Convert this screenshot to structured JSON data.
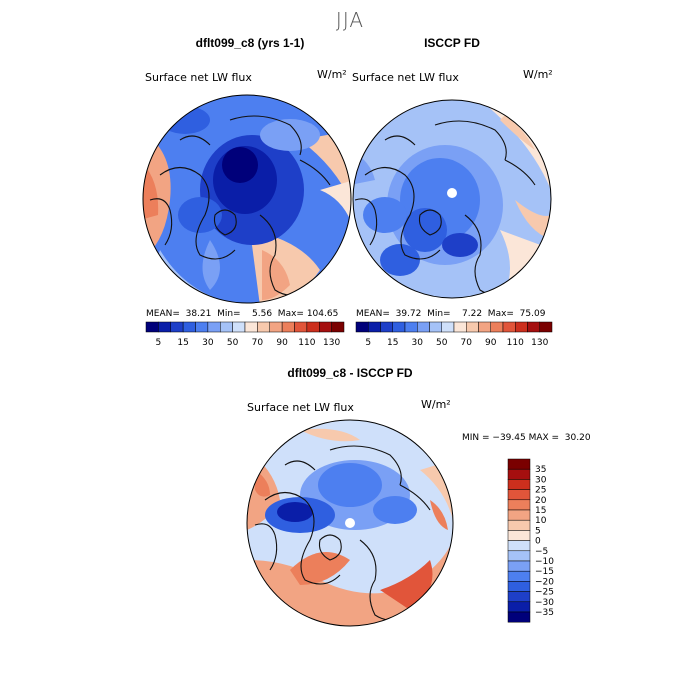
{
  "season_title": "JJA",
  "panels": [
    {
      "title": "dflt099_c8 (yrs 1-1)",
      "field": "Surface net LW flux",
      "units": "W/m²",
      "stats": "MEAN=  38.21  Min=    5.56  Max= 104.65"
    },
    {
      "title": "ISCCP FD",
      "field": "Surface net LW flux",
      "units": "W/m²",
      "stats": "MEAN=  39.72  Min=    7.22  Max=  75.09"
    },
    {
      "title": "dflt099_c8 - ISCCP FD",
      "field": "Surface net LW flux",
      "units": "W/m²",
      "stats": "MIN = −39.45 MAX =  30.20"
    }
  ],
  "chart_data": [
    {
      "type": "heatmap",
      "projection": "polar-stereographic (north)",
      "title": "dflt099_c8 (yrs 1-1)",
      "field": "Surface net LW flux",
      "units": "W/m²",
      "mean": 38.21,
      "min": 5.56,
      "max": 104.65,
      "colorbar": {
        "orientation": "horizontal",
        "ticks": [
          "5",
          "15",
          "30",
          "50",
          "70",
          "90",
          "110",
          "130"
        ],
        "levels": [
          0,
          5,
          10,
          15,
          20,
          30,
          40,
          50,
          60,
          70,
          80,
          90,
          100,
          110,
          120,
          130
        ],
        "colors": [
          "#00007a",
          "#0a1ea8",
          "#1e3fc8",
          "#2f5fe0",
          "#4d7ff0",
          "#7aa0f5",
          "#a5c2f7",
          "#cfe0fa",
          "#fbe6d8",
          "#f7c9ad",
          "#f2a483",
          "#ec7f5b",
          "#e1553a",
          "#cc2f1d",
          "#a50f0f",
          "#7a0000"
        ]
      }
    },
    {
      "type": "heatmap",
      "projection": "polar-stereographic (north)",
      "title": "ISCCP FD",
      "field": "Surface net LW flux",
      "units": "W/m²",
      "mean": 39.72,
      "min": 7.22,
      "max": 75.09,
      "colorbar": {
        "orientation": "horizontal",
        "ticks": [
          "5",
          "15",
          "30",
          "50",
          "70",
          "90",
          "110",
          "130"
        ]
      }
    },
    {
      "type": "heatmap",
      "projection": "polar-stereographic (north)",
      "title": "dflt099_c8 - ISCCP FD",
      "field": "Surface net LW flux",
      "units": "W/m²",
      "min": -39.45,
      "max": 30.2,
      "colorbar": {
        "orientation": "vertical",
        "ticks": [
          "35",
          "30",
          "25",
          "20",
          "15",
          "10",
          "5",
          "0",
          "−5",
          "−10",
          "−15",
          "−20",
          "−25",
          "−30",
          "−35"
        ],
        "colors": [
          "#7a0000",
          "#a50f0f",
          "#cc2f1d",
          "#e1553a",
          "#ec7f5b",
          "#f2a483",
          "#f7c9ad",
          "#fbe6d8",
          "#cfe0fa",
          "#a5c2f7",
          "#7aa0f5",
          "#4d7ff0",
          "#2f5fe0",
          "#1e3fc8",
          "#0a1ea8",
          "#00007a"
        ]
      }
    }
  ]
}
